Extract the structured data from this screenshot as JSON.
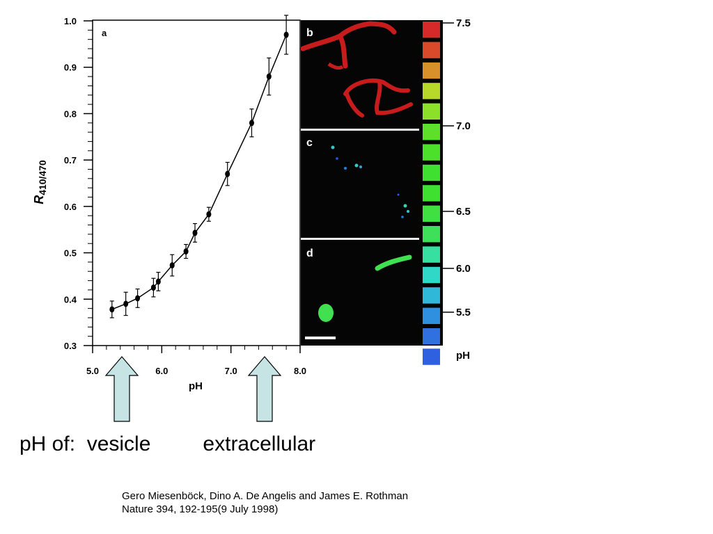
{
  "chart_data": {
    "type": "line",
    "panel_label": "a",
    "xlabel": "pH",
    "ylabel_main": "R",
    "ylabel_sub": "410/470",
    "xlim": [
      5.0,
      8.0
    ],
    "ylim": [
      0.3,
      1.0
    ],
    "x_ticks": [
      "5.0",
      "6.0",
      "7.0",
      "8.0"
    ],
    "y_ticks": [
      "0.3",
      "0.4",
      "0.5",
      "0.6",
      "0.7",
      "0.8",
      "0.9",
      "1.0"
    ],
    "grid": false,
    "points": [
      {
        "x": 5.28,
        "y": 0.378,
        "err": 0.018
      },
      {
        "x": 5.48,
        "y": 0.39,
        "err": 0.025
      },
      {
        "x": 5.65,
        "y": 0.402,
        "err": 0.02
      },
      {
        "x": 5.88,
        "y": 0.425,
        "err": 0.02
      },
      {
        "x": 5.95,
        "y": 0.438,
        "err": 0.02
      },
      {
        "x": 6.15,
        "y": 0.473,
        "err": 0.023
      },
      {
        "x": 6.35,
        "y": 0.503,
        "err": 0.015
      },
      {
        "x": 6.48,
        "y": 0.543,
        "err": 0.02
      },
      {
        "x": 6.68,
        "y": 0.583,
        "err": 0.015
      },
      {
        "x": 6.95,
        "y": 0.67,
        "err": 0.025
      },
      {
        "x": 7.3,
        "y": 0.78,
        "err": 0.03
      },
      {
        "x": 7.55,
        "y": 0.88,
        "err": 0.04
      },
      {
        "x": 7.8,
        "y": 0.97,
        "err": 0.042
      }
    ]
  },
  "micrographs": {
    "panels": [
      "b",
      "c",
      "d"
    ]
  },
  "ph_scale": {
    "labels": [
      "7.5",
      "7.0",
      "6.5",
      "6.0",
      "5.5"
    ],
    "unit": "pH",
    "colors": [
      "#d62a2a",
      "#d84a2a",
      "#d8902a",
      "#b8d82a",
      "#8ce02a",
      "#5ee02a",
      "#4ce02a",
      "#40e030",
      "#40e030",
      "#40e040",
      "#3ee05a",
      "#36e0a0",
      "#30d8c8",
      "#30b8d8",
      "#3090e0",
      "#3070e0",
      "#2e60e0"
    ]
  },
  "annotations": {
    "caption": "pH of:  vesicle         extracellular",
    "arrow_color": "#c6e4e4"
  },
  "citation": {
    "line1": "Gero Miesenböck, Dino A. De Angelis and James E. Rothman",
    "line2": "Nature 394, 192-195(9 July 1998)"
  }
}
